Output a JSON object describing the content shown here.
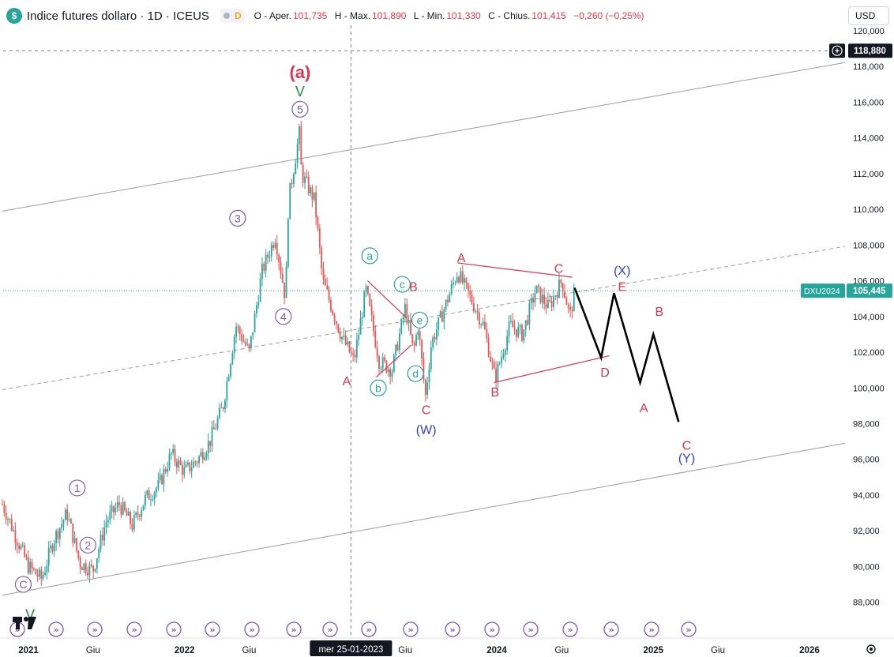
{
  "header": {
    "symbol_icon": "dollar-sign-icon",
    "title": "Indice futures dollaro · 1D · ICEUS",
    "badge": "D",
    "ohlc": {
      "open_label": "O - Aper.",
      "open": "101,735",
      "high_label": "H - Max.",
      "high": "101,890",
      "low_label": "L - Min.",
      "low": "101,330",
      "close_label": "C - Chius.",
      "close": "101,415",
      "change": "−0,260 (−0,25%)"
    },
    "currency": "USD"
  },
  "price_axis": {
    "ticks": [
      "120,000",
      "118,000",
      "116,000",
      "114,000",
      "112,000",
      "110,000",
      "108,000",
      "106,000",
      "104,000",
      "102,000",
      "100,000",
      "98,000",
      "96,000",
      "94,000",
      "92,000",
      "90,000",
      "88,000"
    ],
    "crosshair_price": "118,880",
    "last_symbol": "DXU2024",
    "last_price": "105,445",
    "colors": {
      "last_price_bg": "#26a69a",
      "crosshair_bg": "#131722"
    }
  },
  "time_axis": {
    "labels": [
      "2021",
      "Giu",
      "2022",
      "Giu",
      "Giu",
      "2024",
      "Giu",
      "2025",
      "Giu",
      "2026"
    ],
    "crosshair_date": "mer 25-01-2023",
    "settings_icon": "gear-icon"
  },
  "chart_data": {
    "type": "candlestick",
    "symbol": "DXU2024",
    "ylim": [
      86.5,
      120.5
    ],
    "price_path": [
      {
        "date": "2020-11",
        "p": 93.5
      },
      {
        "date": "2021-01",
        "p": 90.0
      },
      {
        "date": "2021-02",
        "p": 89.3
      },
      {
        "date": "2021-03",
        "p": 91.5
      },
      {
        "date": "2021-04",
        "p": 93.0
      },
      {
        "date": "2021-05",
        "p": 90.2
      },
      {
        "date": "2021-06",
        "p": 89.8
      },
      {
        "date": "2021-07",
        "p": 92.5
      },
      {
        "date": "2021-08",
        "p": 93.5
      },
      {
        "date": "2021-09",
        "p": 92.3
      },
      {
        "date": "2021-10",
        "p": 93.8
      },
      {
        "date": "2021-11",
        "p": 94.5
      },
      {
        "date": "2021-12",
        "p": 96.3
      },
      {
        "date": "2022-01",
        "p": 95.3
      },
      {
        "date": "2022-02",
        "p": 96.0
      },
      {
        "date": "2022-03",
        "p": 97.0
      },
      {
        "date": "2022-04",
        "p": 99.0
      },
      {
        "date": "2022-05",
        "p": 103.5
      },
      {
        "date": "2022-06",
        "p": 102.0
      },
      {
        "date": "2022-07",
        "p": 106.5
      },
      {
        "date": "2022-08",
        "p": 108.5
      },
      {
        "date": "2022-08-25",
        "p": 105.0
      },
      {
        "date": "2022-09",
        "p": 110.5
      },
      {
        "date": "2022-09-28",
        "p": 114.5
      },
      {
        "date": "2022-10",
        "p": 112.0
      },
      {
        "date": "2022-11",
        "p": 110.5
      },
      {
        "date": "2022-11-20",
        "p": 106.0
      },
      {
        "date": "2023-01",
        "p": 103.0
      },
      {
        "date": "2023-02",
        "p": 101.5
      },
      {
        "date": "2023-03",
        "p": 105.5
      },
      {
        "date": "2023-04",
        "p": 101.5
      },
      {
        "date": "2023-05",
        "p": 101.0
      },
      {
        "date": "2023-06",
        "p": 104.5
      },
      {
        "date": "2023-06-20",
        "p": 102.0
      },
      {
        "date": "2023-07",
        "p": 103.5
      },
      {
        "date": "2023-07-18",
        "p": 99.5
      },
      {
        "date": "2023-08",
        "p": 102.5
      },
      {
        "date": "2023-09",
        "p": 104.5
      },
      {
        "date": "2023-10",
        "p": 106.5
      },
      {
        "date": "2023-11",
        "p": 105.0
      },
      {
        "date": "2023-12",
        "p": 103.5
      },
      {
        "date": "2023-12-28",
        "p": 100.5
      },
      {
        "date": "2024-02",
        "p": 103.5
      },
      {
        "date": "2024-03",
        "p": 103.0
      },
      {
        "date": "2024-04",
        "p": 105.5
      },
      {
        "date": "2024-05",
        "p": 104.5
      },
      {
        "date": "2024-06",
        "p": 106.0
      },
      {
        "date": "2024-06-20",
        "p": 104.0
      },
      {
        "date": "2024-07",
        "p": 105.4
      }
    ],
    "projection": [
      {
        "date": "2024-07",
        "p": 105.6
      },
      {
        "date": "2024-09",
        "p": 101.7
      },
      {
        "date": "2024-10",
        "p": 105.3
      },
      {
        "date": "2024-12",
        "p": 100.3
      },
      {
        "date": "2025-01",
        "p": 103.0
      },
      {
        "date": "2025-03",
        "p": 98.1
      }
    ],
    "wave_labels": [
      {
        "text": "(a)",
        "style": "red-bold",
        "date": "2022-09-28",
        "p": 117.6
      },
      {
        "text": "V",
        "style": "green",
        "date": "2022-09-28",
        "p": 116.6
      },
      {
        "text": "5",
        "style": "purple-circle",
        "date": "2022-09-28",
        "p": 115.6
      },
      {
        "text": "3",
        "style": "purple-circle",
        "date": "2022-05-05",
        "p": 109.5
      },
      {
        "text": "4",
        "style": "purple-circle",
        "date": "2022-08-20",
        "p": 104.0
      },
      {
        "text": "1",
        "style": "purple-circle",
        "date": "2021-04-25",
        "p": 94.4
      },
      {
        "text": "2",
        "style": "purple-circle",
        "date": "2021-05-20",
        "p": 91.2
      },
      {
        "text": "C",
        "style": "purple-circle",
        "date": "2020-12-20",
        "p": 89.0
      },
      {
        "text": "V",
        "style": "green",
        "date": "2021-01-05",
        "p": 87.3
      },
      {
        "text": "a",
        "style": "teal-circle",
        "date": "2023-03-10",
        "p": 107.4
      },
      {
        "text": "b",
        "style": "teal-circle",
        "date": "2023-03-30",
        "p": 100.0
      },
      {
        "text": "c",
        "style": "teal-circle",
        "date": "2023-05-25",
        "p": 105.8
      },
      {
        "text": "d",
        "style": "teal-circle",
        "date": "2023-06-25",
        "p": 100.8
      },
      {
        "text": "e",
        "style": "teal-circle",
        "date": "2023-07-05",
        "p": 103.8
      },
      {
        "text": "A",
        "style": "red",
        "date": "2023-01-15",
        "p": 100.4
      },
      {
        "text": "B",
        "style": "red",
        "date": "2023-06-20",
        "p": 105.7
      },
      {
        "text": "C",
        "style": "red",
        "date": "2023-07-20",
        "p": 98.8
      },
      {
        "text": "(W)",
        "style": "blue",
        "date": "2023-07-20",
        "p": 97.7
      },
      {
        "text": "A",
        "style": "red",
        "date": "2023-10-10",
        "p": 107.3
      },
      {
        "text": "B",
        "style": "red",
        "date": "2023-12-28",
        "p": 99.8
      },
      {
        "text": "C",
        "style": "red",
        "date": "2024-05-25",
        "p": 106.7
      },
      {
        "text": "D",
        "style": "red",
        "date": "2024-09-10",
        "p": 100.9
      },
      {
        "text": "E",
        "style": "red",
        "date": "2024-10-20",
        "p": 105.7
      },
      {
        "text": "(X)",
        "style": "blue",
        "date": "2024-10-20",
        "p": 106.6
      },
      {
        "text": "A",
        "style": "red",
        "date": "2024-12-10",
        "p": 98.9
      },
      {
        "text": "B",
        "style": "red",
        "date": "2025-01-15",
        "p": 104.3
      },
      {
        "text": "C",
        "style": "red",
        "date": "2025-03-20",
        "p": 96.8
      },
      {
        "text": "(Y)",
        "style": "blue",
        "date": "2025-03-20",
        "p": 96.1
      }
    ],
    "channel_lines": [
      {
        "style": "solid-gray",
        "from": {
          "date": "2020-11",
          "p": 109.9
        },
        "to": {
          "date": "2026-06",
          "p": 118.5
        }
      },
      {
        "style": "dashed-gray",
        "from": {
          "date": "2020-11",
          "p": 99.9
        },
        "to": {
          "date": "2026-06",
          "p": 108.2
        }
      },
      {
        "style": "solid-gray",
        "from": {
          "date": "2020-11",
          "p": 88.4
        },
        "to": {
          "date": "2026-06",
          "p": 97.2
        }
      }
    ],
    "triangle_lines": [
      {
        "from": {
          "date": "2023-10-01",
          "p": 107.0
        },
        "to": {
          "date": "2024-06-25",
          "p": 106.2
        }
      },
      {
        "from": {
          "date": "2023-12-25",
          "p": 100.3
        },
        "to": {
          "date": "2024-09-20",
          "p": 101.8
        }
      },
      {
        "from": {
          "date": "2023-03-05",
          "p": 106.0
        },
        "to": {
          "date": "2023-06-05",
          "p": 103.9
        }
      },
      {
        "from": {
          "date": "2023-03-25",
          "p": 100.6
        },
        "to": {
          "date": "2023-06-15",
          "p": 102.4
        }
      }
    ]
  },
  "colors": {
    "up": "#26a69a",
    "down": "#ef5350",
    "wave_red": "#e0344d",
    "wave_purple": "#7e57c2",
    "wave_teal": "#26a69a",
    "wave_blue": "#2d3ec8",
    "wave_green": "#1f8b3c",
    "projection": "#000000"
  },
  "tv_logo": "tradingview-logo",
  "event_icon_count": 17
}
